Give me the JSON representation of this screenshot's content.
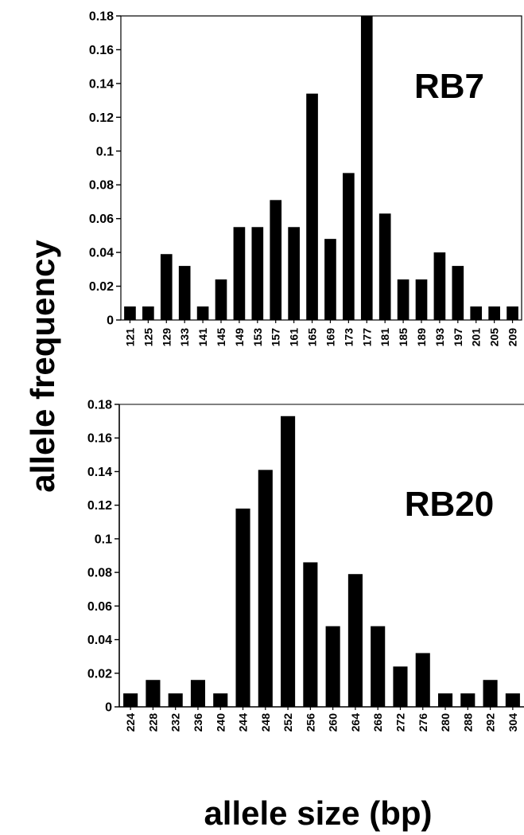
{
  "chart_data": [
    {
      "type": "bar",
      "panel_label": "RB7",
      "categories": [
        "121",
        "125",
        "129",
        "133",
        "141",
        "145",
        "149",
        "153",
        "157",
        "161",
        "165",
        "169",
        "173",
        "177",
        "181",
        "185",
        "189",
        "193",
        "197",
        "201",
        "205",
        "209"
      ],
      "values": [
        0.008,
        0.008,
        0.039,
        0.032,
        0.008,
        0.024,
        0.055,
        0.055,
        0.071,
        0.055,
        0.134,
        0.048,
        0.087,
        0.18,
        0.063,
        0.024,
        0.024,
        0.04,
        0.032,
        0.008,
        0.008,
        0.008
      ],
      "yticks": [
        "0",
        "0.02",
        "0.04",
        "0.06",
        "0.08",
        "0.1",
        "0.12",
        "0.14",
        "0.16",
        "0.18"
      ],
      "ylim": [
        0,
        0.18
      ],
      "grid": false
    },
    {
      "type": "bar",
      "panel_label": "RB20",
      "categories": [
        "224",
        "228",
        "232",
        "236",
        "240",
        "244",
        "248",
        "252",
        "256",
        "260",
        "264",
        "268",
        "272",
        "276",
        "280",
        "288",
        "292",
        "304"
      ],
      "values": [
        0.008,
        0.016,
        0.008,
        0.016,
        0.008,
        0.118,
        0.141,
        0.173,
        0.086,
        0.048,
        0.079,
        0.048,
        0.024,
        0.032,
        0.008,
        0.008,
        0.016,
        0.008
      ],
      "yticks": [
        "0",
        "0.02",
        "0.04",
        "0.06",
        "0.08",
        "0.1",
        "0.12",
        "0.14",
        "0.16",
        "0.18"
      ],
      "ylim": [
        0,
        0.18
      ],
      "grid": false
    }
  ],
  "shared_ylabel": "allele frequency",
  "shared_xlabel": "allele size (bp)",
  "colors": {
    "bar": "#000000",
    "axis": "#000000",
    "background": "#ffffff"
  }
}
